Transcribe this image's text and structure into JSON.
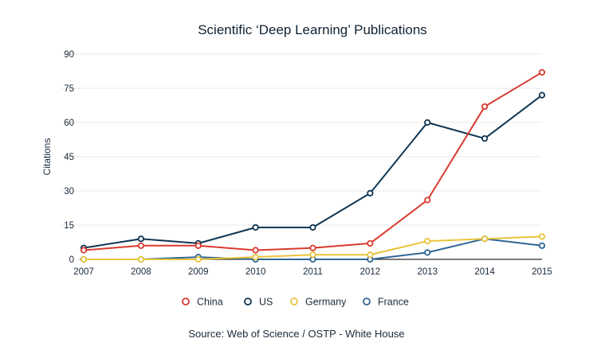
{
  "chart_data": {
    "type": "line",
    "title": "Scientific ‘Deep Learning’ Publications",
    "ylabel": "Citations",
    "xlabel": "",
    "ylim": [
      0,
      90
    ],
    "yticks": [
      "0",
      "15",
      "30",
      "45",
      "60",
      "75",
      "90"
    ],
    "x": [
      "2007",
      "2008",
      "2009",
      "2010",
      "2011",
      "2012",
      "2013",
      "2014",
      "2015"
    ],
    "grid": true,
    "legend_position": "bottom",
    "source": "Source: Web of Science / OSTP - White House",
    "series": [
      {
        "name": "China",
        "color": "#d93a2f",
        "values": [
          4,
          6,
          6,
          4,
          5,
          7,
          26,
          67,
          82
        ]
      },
      {
        "name": "US",
        "color": "#0e3552",
        "values": [
          5,
          9,
          7,
          14,
          14,
          29,
          60,
          53,
          72
        ]
      },
      {
        "name": "Germany",
        "color": "#e8c43c",
        "values": [
          0,
          0,
          0,
          1,
          2,
          2,
          8,
          9,
          10
        ]
      },
      {
        "name": "France",
        "color": "#2f6696",
        "values": [
          0,
          0,
          1,
          0,
          0,
          0,
          3,
          9,
          6
        ]
      }
    ]
  }
}
